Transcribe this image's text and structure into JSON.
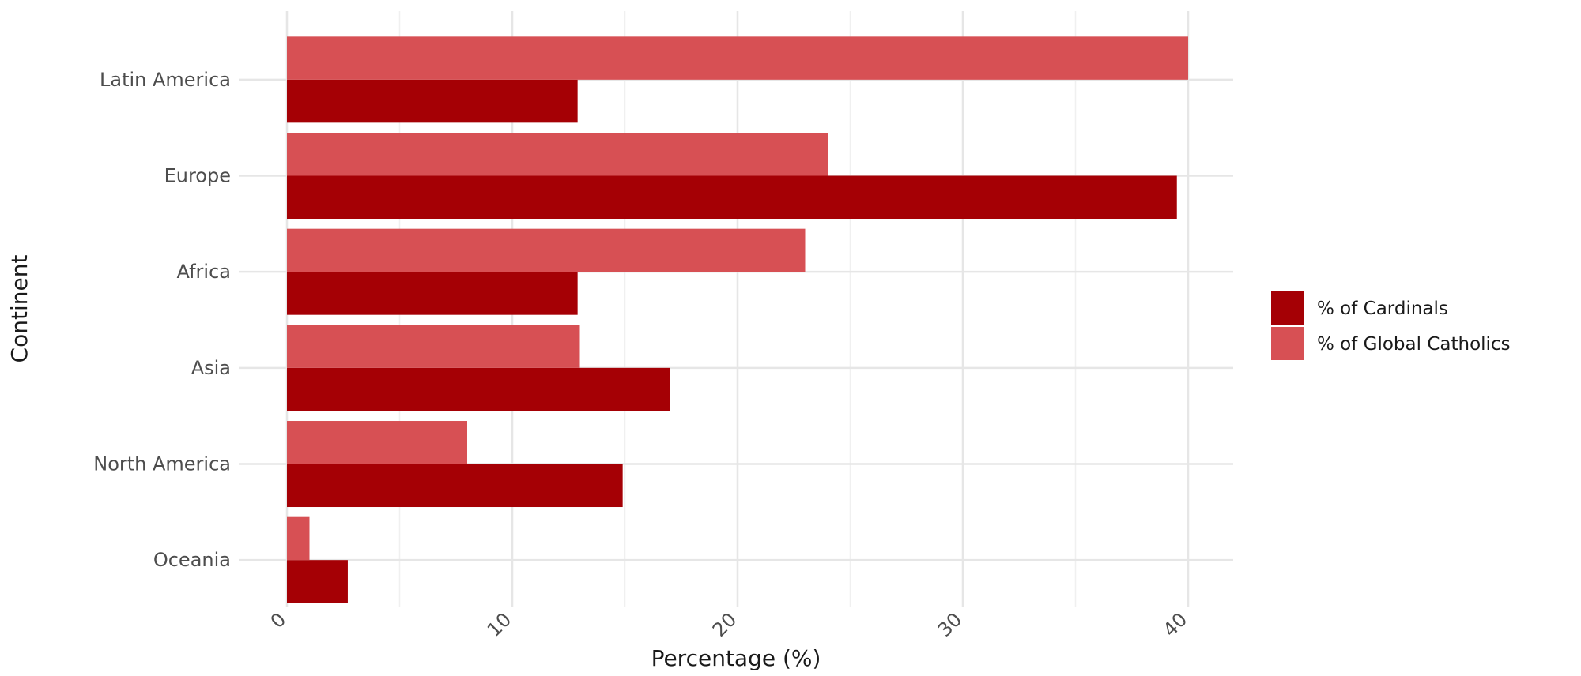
{
  "chart_data": {
    "type": "bar",
    "orientation": "horizontal",
    "title": "",
    "xlabel": "Percentage (%)",
    "ylabel": "Continent",
    "categories": [
      "Oceania",
      "North America",
      "Asia",
      "Africa",
      "Europe",
      "Latin America"
    ],
    "series": [
      {
        "name": "% of Cardinals",
        "color": "#a50005",
        "values": [
          2.7,
          14.9,
          17.0,
          12.9,
          39.5,
          12.9
        ]
      },
      {
        "name": "% of Global Catholics",
        "color": "#d75054",
        "values": [
          1.0,
          8.0,
          13.0,
          23.0,
          24.0,
          40.0
        ]
      }
    ],
    "xlim": [
      0,
      42
    ],
    "xticks": [
      0,
      10,
      20,
      30,
      40
    ],
    "xtick_labels": [
      "0",
      "10",
      "20",
      "30",
      "40"
    ],
    "grid": true,
    "legend_position": "right"
  }
}
